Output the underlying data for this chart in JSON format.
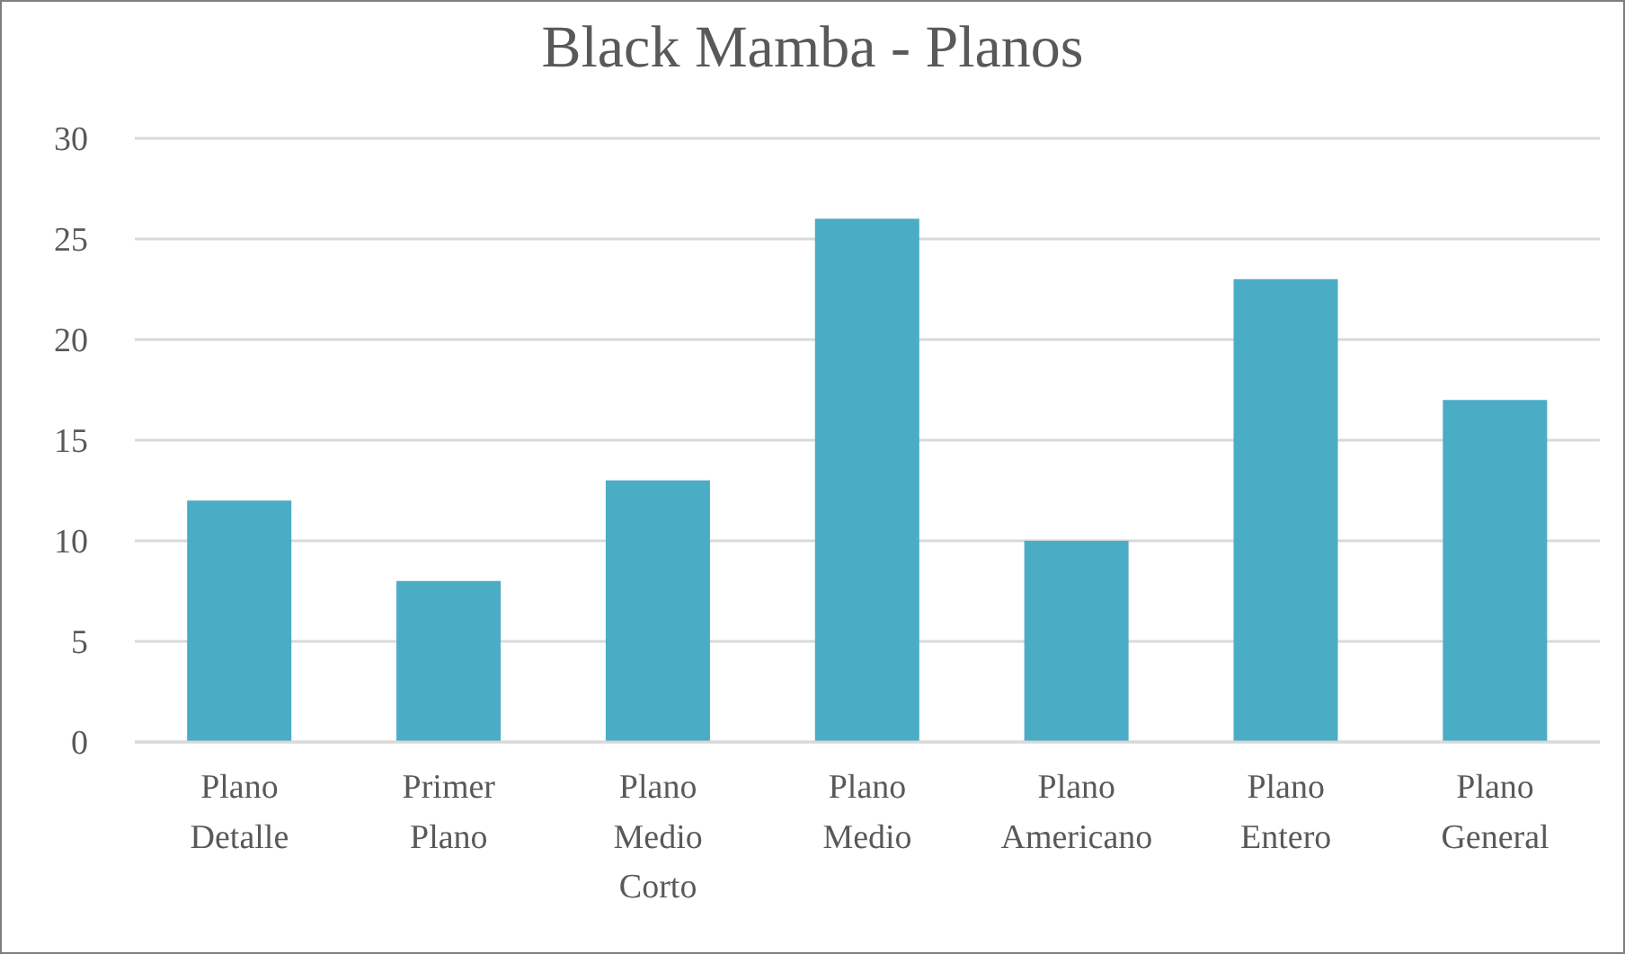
{
  "chart_data": {
    "type": "bar",
    "title": "Black Mamba - Planos",
    "categories": [
      "Plano Detalle",
      "Primer Plano",
      "Plano Medio Corto",
      "Plano Medio",
      "Plano Americano",
      "Plano Entero",
      "Plano General"
    ],
    "values": [
      12,
      8,
      13,
      26,
      10,
      23,
      17
    ],
    "color": "#4bacc6",
    "ylim": [
      0,
      30
    ],
    "yticks": [
      0,
      5,
      10,
      15,
      20,
      25,
      30
    ],
    "grid": "y"
  }
}
